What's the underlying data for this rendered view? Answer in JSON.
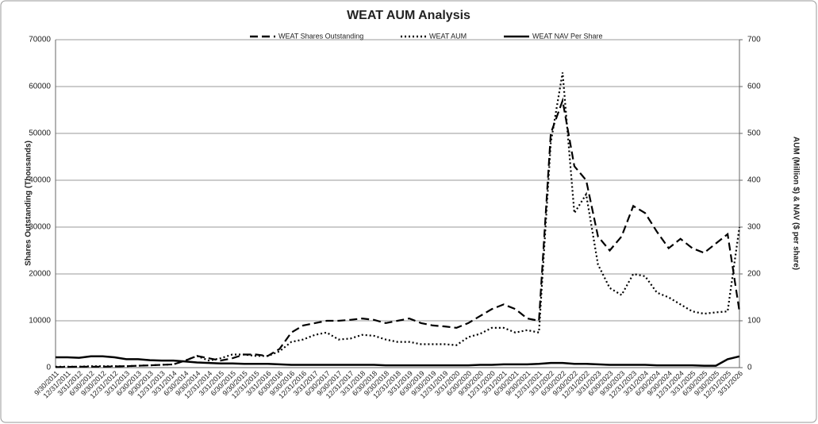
{
  "chart_data": {
    "type": "line",
    "title": "WEAT AUM Analysis",
    "y_label": "Shares Outstanding (Thousands)",
    "y2_label": "AUM (Million $) & NAV ($ per share)",
    "categories": [
      "9/30/2011",
      "12/31/2011",
      "3/31/2012",
      "6/30/2012",
      "9/30/2012",
      "12/31/2012",
      "3/31/2013",
      "6/30/2013",
      "9/30/2013",
      "12/31/2013",
      "3/31/2014",
      "6/30/2014",
      "9/30/2014",
      "12/31/2014",
      "3/31/2015",
      "6/30/2015",
      "9/30/2015",
      "12/31/2015",
      "3/31/2016",
      "6/30/2016",
      "9/30/2016",
      "12/31/2016",
      "3/31/2017",
      "6/30/2017",
      "9/30/2017",
      "12/31/2017",
      "3/31/2018",
      "6/30/2018",
      "9/30/2018",
      "12/31/2018",
      "3/31/2019",
      "6/30/2019",
      "9/30/2019",
      "12/31/2019",
      "3/31/2020",
      "6/30/2020",
      "9/30/2020",
      "12/31/2020",
      "3/31/2021",
      "6/30/2021",
      "9/30/2021",
      "12/31/2021",
      "3/31/2022",
      "6/30/2022",
      "9/30/2022",
      "12/31/2022",
      "3/31/2023",
      "6/30/2023",
      "9/30/2023",
      "12/31/2023",
      "3/31/2024",
      "6/30/2024",
      "9/30/2024",
      "12/31/2024",
      "3/31/2025",
      "6/30/2025",
      "9/30/2025",
      "12/31/2025",
      "3/31/2026"
    ],
    "series": [
      {
        "name": "WEAT Shares Outstanding",
        "color": "#000000",
        "style": "dashed",
        "axis": "y",
        "values": [
          100,
          150,
          200,
          200,
          200,
          250,
          300,
          400,
          500,
          600,
          700,
          1500,
          2500,
          2000,
          1500,
          2000,
          2800,
          2800,
          2500,
          4000,
          7500,
          9000,
          9500,
          10000,
          10000,
          10200,
          10500,
          10200,
          9500,
          10000,
          10500,
          9500,
          9000,
          8800,
          8500,
          9500,
          11000,
          12500,
          13500,
          12500,
          10500,
          10000,
          50000,
          57000,
          43000,
          40000,
          28000,
          25000,
          28000,
          34500,
          33000,
          29000,
          25500,
          27500,
          25500,
          24500,
          26500,
          28500,
          12000
        ]
      },
      {
        "name": "WEAT AUM",
        "color": "#000000",
        "style": "dotted",
        "axis": "y2",
        "values": [
          2,
          2,
          2,
          3,
          3,
          3,
          3,
          4,
          5,
          6,
          7,
          15,
          25,
          15,
          20,
          28,
          28,
          25,
          25,
          35,
          55,
          60,
          70,
          75,
          60,
          62,
          70,
          68,
          60,
          55,
          55,
          50,
          50,
          50,
          48,
          65,
          72,
          85,
          85,
          75,
          80,
          75,
          480,
          630,
          330,
          370,
          220,
          170,
          155,
          200,
          195,
          160,
          150,
          135,
          120,
          115,
          118,
          120,
          300
        ]
      },
      {
        "name": "WEAT NAV Per Share",
        "color": "#000000",
        "style": "solid",
        "axis": "y2",
        "values": [
          22,
          22,
          21,
          24,
          24,
          22,
          18,
          18,
          16,
          15,
          15,
          13,
          11,
          10,
          9,
          9,
          8,
          8,
          8,
          7,
          6,
          6,
          6,
          6,
          6,
          6,
          6,
          6,
          5,
          5,
          5,
          5,
          5,
          5,
          5,
          5,
          6,
          6,
          7,
          7,
          7,
          8,
          10,
          10,
          8,
          8,
          7,
          6,
          6,
          6,
          6,
          5,
          5,
          5,
          5,
          4,
          4,
          18,
          24
        ]
      }
    ],
    "ylim": [
      0,
      70000
    ],
    "yticks": [
      0,
      10000,
      20000,
      30000,
      40000,
      50000,
      60000,
      70000
    ],
    "y2lim": [
      0,
      700
    ],
    "y2ticks": [
      0,
      100,
      200,
      300,
      400,
      500,
      600,
      700
    ],
    "grid": true
  }
}
